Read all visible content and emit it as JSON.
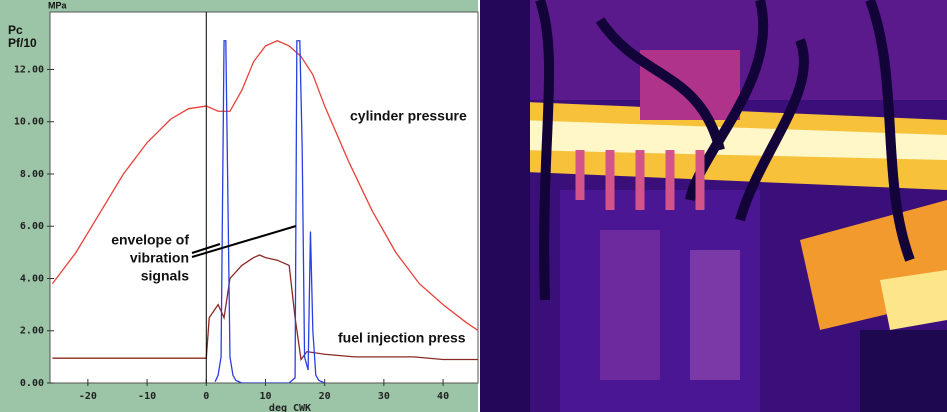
{
  "chart_data": {
    "type": "line",
    "y_label": [
      "Pc",
      "Pf/10"
    ],
    "y_unit": "MPa",
    "x_label": "deg CWK",
    "xlim": [
      -26.4,
      45.9
    ],
    "ylim": [
      0,
      14.2
    ],
    "xticks": [
      -20,
      -10,
      0,
      10,
      20,
      30,
      40
    ],
    "yticks": [
      {
        "value": 0,
        "label": "0.00"
      },
      {
        "value": 2,
        "label": "2.00"
      },
      {
        "value": 4,
        "label": "4.00"
      },
      {
        "value": 6,
        "label": "6.00"
      },
      {
        "value": 8,
        "label": "8.00"
      },
      {
        "value": 10,
        "label": "10.00"
      },
      {
        "value": 12,
        "label": "12.00"
      }
    ],
    "series": [
      {
        "color": "#e8413a",
        "x": [
          -26,
          -22,
          -18,
          -14,
          -10,
          -6,
          -3,
          0,
          2,
          4,
          6,
          8,
          10,
          12,
          14,
          16,
          18,
          20,
          24,
          28,
          32,
          36,
          40,
          44,
          46
        ],
        "values": [
          3.8,
          5.0,
          6.5,
          8.0,
          9.2,
          10.1,
          10.5,
          10.6,
          10.4,
          10.4,
          11.2,
          12.3,
          12.9,
          13.1,
          12.9,
          12.5,
          11.8,
          10.6,
          8.5,
          6.6,
          5.0,
          3.8,
          3.0,
          2.3,
          2.0
        ]
      },
      {
        "color": "#8b2a22",
        "x": [
          -26,
          -20,
          -10,
          0,
          0.5,
          2,
          3,
          4,
          6,
          8,
          9,
          10,
          12,
          14,
          15,
          16,
          17,
          20,
          25,
          30,
          35,
          40,
          46
        ],
        "values": [
          0.95,
          0.95,
          0.95,
          0.95,
          2.5,
          3.0,
          2.5,
          4.0,
          4.5,
          4.8,
          4.9,
          4.8,
          4.7,
          4.5,
          2.5,
          0.9,
          1.2,
          1.1,
          1.0,
          1.0,
          1.0,
          0.9,
          0.9
        ]
      },
      {
        "color": "#2a3fe0",
        "x": [
          1.5,
          2,
          2.5,
          3,
          3.3,
          3.6,
          4,
          4.5,
          5,
          6,
          14,
          15,
          15.3,
          15.8,
          16.2,
          16.6,
          17.2,
          17.6,
          18,
          18.5,
          19,
          20
        ],
        "values": [
          0.05,
          0.3,
          1.0,
          13.1,
          13.1,
          8,
          1,
          0.3,
          0.1,
          0,
          0,
          0.2,
          13.1,
          13.1,
          9,
          1,
          0.5,
          5.8,
          2,
          0.3,
          0.1,
          0
        ]
      }
    ],
    "annotations": [
      {
        "lines": [
          "cylinder pressure"
        ]
      },
      {
        "lines": [
          "envelope of",
          "vibration",
          "signals"
        ]
      },
      {
        "lines": [
          "fuel injection press"
        ]
      }
    ]
  }
}
